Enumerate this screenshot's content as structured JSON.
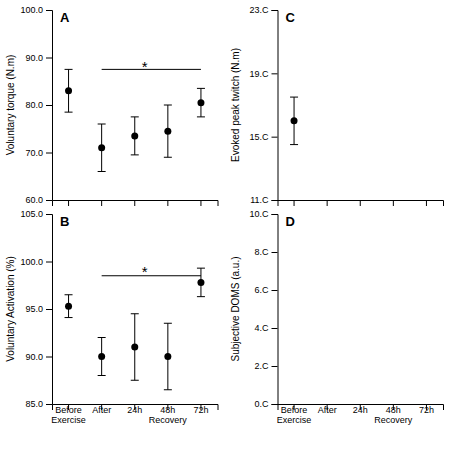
{
  "chart_data": [
    {
      "type": "scatter",
      "title": "A",
      "y_label": "Voluntary torque (N.m)",
      "categories": [
        null,
        null,
        null,
        null,
        null
      ],
      "tick_labels": "y",
      "values": [
        83.0,
        71.0,
        73.5,
        74.5,
        80.5
      ],
      "errors": [
        4.5,
        5.0,
        4.0,
        5.5,
        3.0
      ],
      "color": "#000000",
      "marker": "circle",
      "ylim": [
        60.0,
        100.0
      ],
      "yticks": [
        {
          "value": 60.0,
          "label": "60.0"
        },
        {
          "value": 70.0,
          "label": "70.0"
        },
        {
          "value": 80.0,
          "label": "80.0"
        },
        {
          "value": 90.0,
          "label": "90.0"
        },
        {
          "value": 100.0,
          "label": "100.0"
        }
      ],
      "reference_lines": [
        {
          "x": [
            1,
            4
          ],
          "y": 87.5
        }
      ],
      "annotations": [
        {
          "text": "*",
          "x": 2.3,
          "y": 87.8
        }
      ]
    },
    {
      "type": "scatter",
      "title": "B",
      "y_label": "Voluntary Activation (%)",
      "categories": [
        "Before\nExercise",
        "After",
        "24h",
        "48h\nRecovery",
        "72h"
      ],
      "values": [
        95.3,
        90.0,
        91.0,
        90.0,
        97.8
      ],
      "errors": [
        1.2,
        2.0,
        3.5,
        3.5,
        1.5
      ],
      "color": "#000000",
      "marker": "circle",
      "ylim": [
        85.0,
        105.0
      ],
      "yticks": [
        {
          "value": 85.0,
          "label": "85.0"
        },
        {
          "value": 90.0,
          "label": "90.0"
        },
        {
          "value": 95.0,
          "label": "95.0"
        },
        {
          "value": 100.0,
          "label": "100.0"
        },
        {
          "value": 105.0,
          "label": "105.0"
        }
      ],
      "reference_lines": [
        {
          "x": [
            1,
            4
          ],
          "y": 98.5
        }
      ],
      "annotations": [
        {
          "text": "*",
          "x": 2.3,
          "y": 98.8
        }
      ]
    },
    {
      "type": "scatter",
      "title": "C",
      "y_label": "Evoked peak twitch (N.m)",
      "categories": [
        null,
        null,
        null,
        null,
        null
      ],
      "tick_labels": "y",
      "values": [
        16.0,
        null,
        null,
        null,
        null
      ],
      "errors": [
        1.5,
        null,
        null,
        null,
        null
      ],
      "color": "#000000",
      "marker": "circle",
      "ylim": [
        11.0,
        23.0
      ],
      "yticks": [
        {
          "value": 11.0,
          "label": "11.C"
        },
        {
          "value": 15.0,
          "label": "15.C"
        },
        {
          "value": 19.0,
          "label": "19.C"
        },
        {
          "value": 23.0,
          "label": "23.C"
        }
      ]
    },
    {
      "type": "scatter",
      "title": "D",
      "y_label": "Subjective DOMS (a.u.)",
      "categories": [
        "Before\nExercise",
        "After",
        "24h",
        "48h\nRecovery",
        "72h"
      ],
      "ylim": [
        0.0,
        10.0
      ],
      "yticks": [
        {
          "value": 0.0,
          "label": "0.C"
        },
        {
          "value": 2.0,
          "label": "2.C"
        },
        {
          "value": 4.0,
          "label": "4.C"
        },
        {
          "value": 6.0,
          "label": "6.C"
        },
        {
          "value": 8.0,
          "label": "8.C"
        },
        {
          "value": 10.0,
          "label": "10.C"
        }
      ]
    }
  ]
}
